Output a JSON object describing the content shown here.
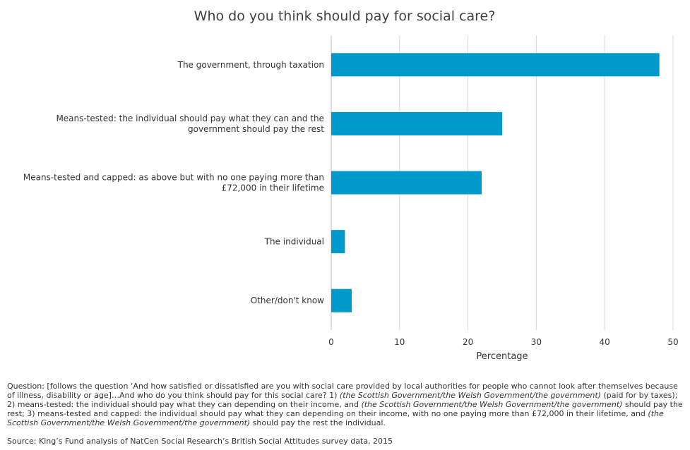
{
  "chart_data": {
    "type": "bar",
    "orientation": "horizontal",
    "title": "Who do you think should pay for social care?",
    "xlabel": "Percentage",
    "ylabel": "",
    "xlim": [
      0,
      50
    ],
    "xticks": [
      0,
      10,
      20,
      30,
      40,
      50
    ],
    "grid": true,
    "legend": "none",
    "color": "#0099cc",
    "categories": [
      [
        "The government, through taxation"
      ],
      [
        "Means-tested: the individual should pay what they can and the",
        "government should pay the rest"
      ],
      [
        "Means-tested and capped: as above but with no one paying more than",
        "£72,000 in their lifetime"
      ],
      [
        "The individual"
      ],
      [
        "Other/don't know"
      ]
    ],
    "values": [
      48,
      25,
      22,
      2,
      3
    ]
  },
  "notes": {
    "question_parts": [
      "Question: [follows the question ‘And how satisfied or dissatisfied are you with social care provided by local authorities for people who cannot look after themselves because of illness, disability or age]…And who do you think should pay for this social care? 1) ",
      "(the Scottish Government/the Welsh Government/the government)",
      " (paid for by taxes); 2) means-tested: the individual should pay what they can depending on their income, and ",
      "(the Scottish Government/the Welsh Government/the government)",
      " should pay the rest; 3) means-tested and capped: the individual should pay what they can depending on their income, with no one paying more than £72,000 in their lifetime, and ",
      "(the Scottish Government/the Welsh Government/the government)",
      " should pay the rest the individual."
    ],
    "source": "Source: King’s Fund analysis of NatCen Social Research’s British Social Attitudes survey data, 2015"
  }
}
